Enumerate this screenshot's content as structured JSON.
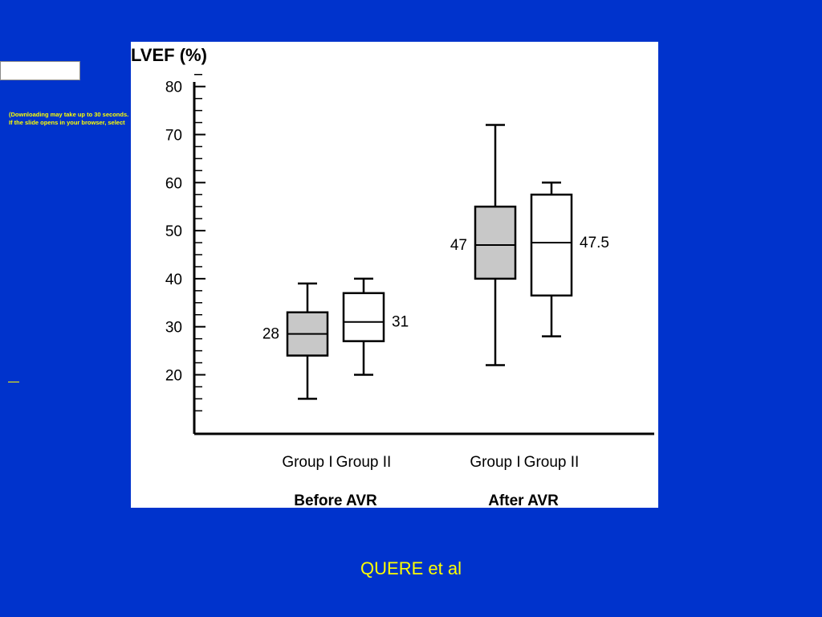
{
  "notice": {
    "line1": "(Downloading may take up to 30 seconds.",
    "line2": "If the slide opens in your browser, select"
  },
  "caption": "QUERE et al",
  "colors": {
    "background": "#0033cc",
    "caption": "#ffff00",
    "box_group1": "#c8c8c8",
    "box_group2": "#ffffff"
  },
  "chart_data": {
    "type": "box",
    "title": "LVEF (%)",
    "ylim": [
      10,
      83
    ],
    "yticks": [
      20,
      30,
      40,
      50,
      60,
      70,
      80
    ],
    "group_labels": [
      "Before AVR",
      "After AVR"
    ],
    "boxes": [
      {
        "group": "Before AVR",
        "name": "Group I",
        "min": 15,
        "q1": 24,
        "median": 28.5,
        "q3": 33,
        "max": 39,
        "label": "28",
        "label_side": "left",
        "fill": "#c8c8c8"
      },
      {
        "group": "Before AVR",
        "name": "Group II",
        "min": 20,
        "q1": 27,
        "median": 31,
        "q3": 37,
        "max": 40,
        "label": "31",
        "label_side": "right",
        "fill": "#ffffff"
      },
      {
        "group": "After AVR",
        "name": "Group I",
        "min": 22,
        "q1": 40,
        "median": 47,
        "q3": 55,
        "max": 72,
        "label": "47",
        "label_side": "left",
        "fill": "#c8c8c8"
      },
      {
        "group": "After AVR",
        "name": "Group II",
        "min": 28,
        "q1": 36.5,
        "median": 47.5,
        "q3": 57.5,
        "max": 60,
        "label": "47.5",
        "label_side": "right",
        "fill": "#ffffff"
      }
    ]
  }
}
